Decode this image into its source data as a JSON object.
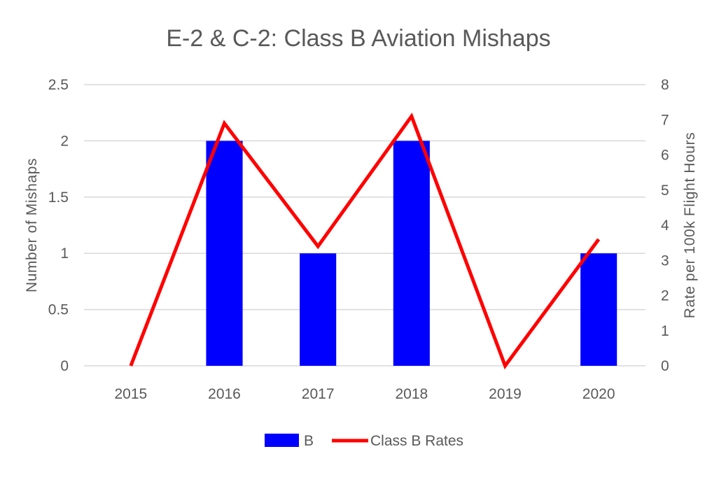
{
  "chart_data": {
    "type": "bar",
    "title": "E-2 & C-2: Class B Aviation Mishaps",
    "categories": [
      "2015",
      "2016",
      "2017",
      "2018",
      "2019",
      "2020"
    ],
    "series": [
      {
        "name": "B",
        "type": "bar",
        "axis": "left",
        "color": "#0000ff",
        "values": [
          0,
          2,
          1,
          2,
          0,
          1
        ]
      },
      {
        "name": "Class B Rates",
        "type": "line",
        "axis": "right",
        "color": "#ff0000",
        "values": [
          0,
          6.9,
          3.4,
          7.1,
          0,
          3.6
        ]
      }
    ],
    "ylabel": "Number of Mishaps",
    "y2label": "Rate per 100k Flight Hours",
    "ylim": [
      0,
      2.5
    ],
    "y2lim": [
      0,
      8
    ],
    "yticks": [
      "0",
      "0.5",
      "1",
      "1.5",
      "2",
      "2.5"
    ],
    "y2ticks": [
      "0",
      "1",
      "2",
      "3",
      "4",
      "5",
      "6",
      "7",
      "8"
    ],
    "grid": true,
    "legend": "bottom"
  }
}
